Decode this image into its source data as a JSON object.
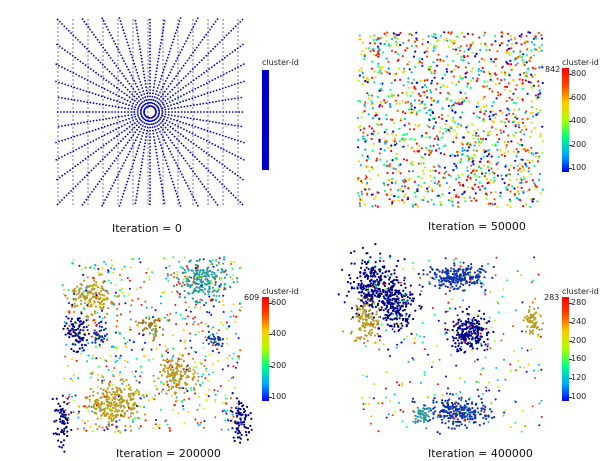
{
  "panels": [
    {
      "caption": "Iteration = 0",
      "colorbar": {
        "title": "cluster-id",
        "mode": "solid",
        "color": "#0000cc",
        "max_label": "",
        "ticks": []
      }
    },
    {
      "caption": "Iteration = 50000",
      "colorbar": {
        "title": "cluster-id",
        "mode": "rainbow",
        "max_label": "842",
        "ticks": [
          "800",
          "600",
          "400",
          "200",
          "100"
        ]
      }
    },
    {
      "caption": "Iteration = 200000",
      "colorbar": {
        "title": "cluster-id",
        "mode": "rainbow",
        "max_label": "609",
        "ticks": [
          "600",
          "400",
          "200",
          "100"
        ]
      }
    },
    {
      "caption": "Iteration = 400000",
      "colorbar": {
        "title": "cluster-id",
        "mode": "rainbow",
        "max_label": "283",
        "ticks": [
          "280",
          "240",
          "200",
          "160",
          "120",
          "100"
        ]
      }
    }
  ],
  "colors": {
    "initial_points": "#0000bb",
    "rainbow": [
      "#0000ff",
      "#00aaff",
      "#00ff80",
      "#aaff00",
      "#ffcc00",
      "#ff4400",
      "#ff0000"
    ],
    "dense_clusters": [
      "#000088",
      "#1133aa",
      "#b89a20",
      "#2a9a9a",
      "#a07a20"
    ]
  }
}
